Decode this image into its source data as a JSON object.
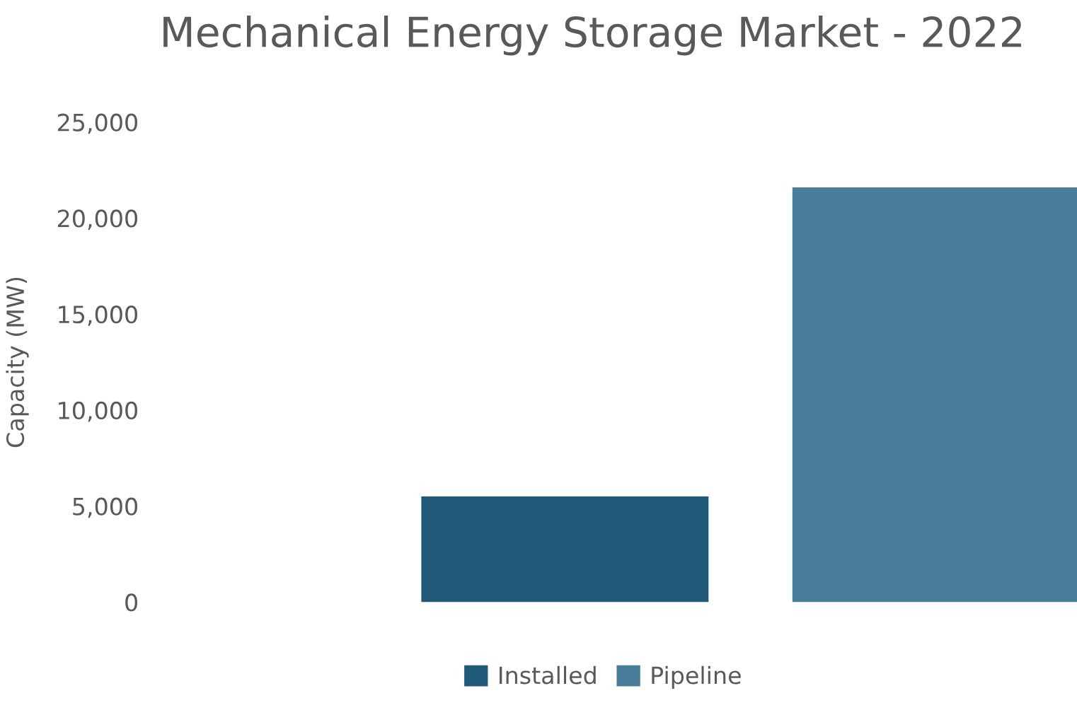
{
  "chart_data": {
    "type": "bar",
    "title": "Mechanical Energy Storage Market - 2022",
    "ylabel": "Capacity (MW)",
    "categories": [
      null
    ],
    "series": [
      {
        "name": "Installed",
        "color": "#215a79",
        "values": [
          5500
        ]
      },
      {
        "name": "Pipeline",
        "color": "#497d9c",
        "values": [
          21600
        ]
      }
    ],
    "ylim": [
      0,
      25000
    ],
    "yticks": [
      {
        "value": 0,
        "label": "0"
      },
      {
        "value": 5000,
        "label": "5,000"
      },
      {
        "value": 10000,
        "label": "10,000"
      },
      {
        "value": 15000,
        "label": "15,000"
      },
      {
        "value": 20000,
        "label": "20,000"
      },
      {
        "value": 25000,
        "label": "25,000"
      }
    ],
    "grid": false,
    "legend": "bottom"
  }
}
